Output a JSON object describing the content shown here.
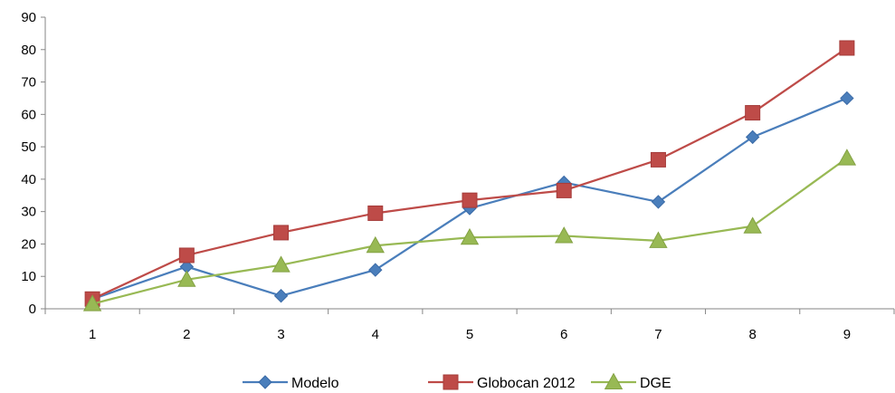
{
  "chart_data": {
    "type": "line",
    "x": [
      "1",
      "2",
      "3",
      "4",
      "5",
      "6",
      "7",
      "8",
      "9"
    ],
    "ylim": [
      0,
      90
    ],
    "yticks": [
      "0",
      "10",
      "20",
      "30",
      "40",
      "50",
      "60",
      "70",
      "80",
      "90"
    ],
    "grid": false,
    "legend_position": "bottom",
    "series": [
      {
        "name": "Modelo",
        "marker": "diamond",
        "color": "#4a7ebb",
        "values": [
          3,
          13,
          4,
          12,
          31,
          39,
          33,
          53,
          65
        ]
      },
      {
        "name": "Globocan 2012",
        "marker": "square",
        "color": "#be4b48",
        "values": [
          3,
          16.5,
          23.5,
          29.5,
          33.5,
          36.5,
          46,
          60.5,
          80.5
        ]
      },
      {
        "name": "DGE",
        "marker": "triangle",
        "color": "#98b954",
        "values": [
          1.5,
          9,
          13.5,
          19.5,
          22,
          22.5,
          21,
          25.5,
          46.5
        ]
      }
    ]
  }
}
